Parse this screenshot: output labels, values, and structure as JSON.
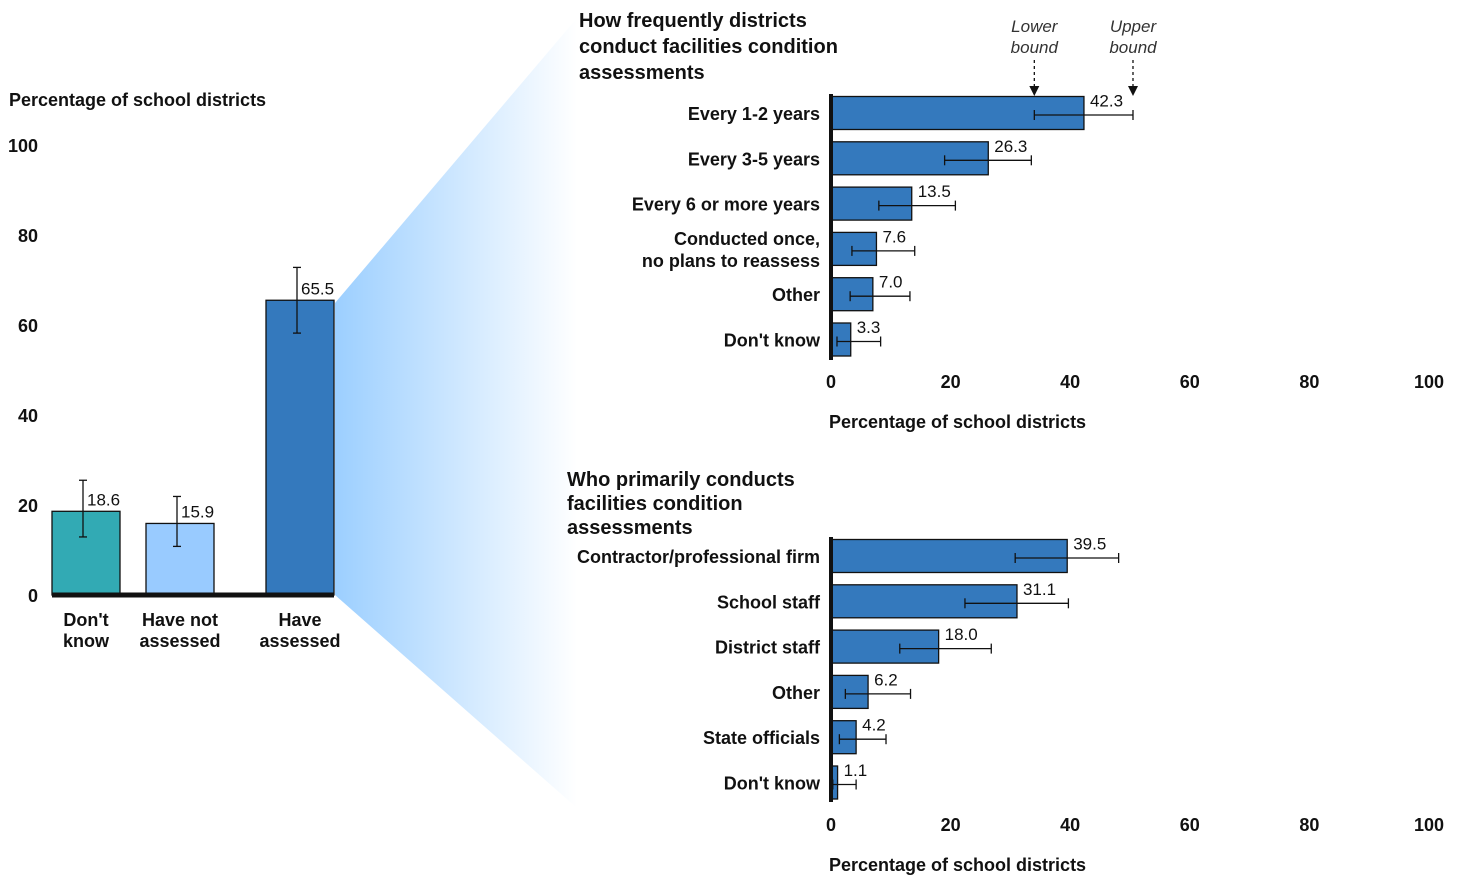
{
  "colors": {
    "teal": "#32aab4",
    "light_blue": "#99cbff",
    "blue": "#3479bd",
    "axis": "#111111",
    "zoom_gradient": "#9ccfff"
  },
  "chart_data": [
    {
      "id": "overview",
      "type": "bar",
      "orientation": "vertical",
      "ylabel": "Percentage of school districts",
      "ylim": [
        0,
        100
      ],
      "yticks": [
        0,
        20,
        40,
        60,
        80,
        100
      ],
      "categories": [
        {
          "label_lines": [
            "Don't",
            "know"
          ],
          "value": 18.6,
          "value_label": "18.6",
          "ci": [
            12.9,
            25.5
          ],
          "color": "#32aab4"
        },
        {
          "label_lines": [
            "Have not",
            "assessed"
          ],
          "value": 15.9,
          "value_label": "15.9",
          "ci": [
            10.8,
            21.9
          ],
          "color": "#99cbff"
        },
        {
          "label_lines": [
            "Have",
            "assessed"
          ],
          "value": 65.5,
          "value_label": "65.5",
          "ci": [
            58.2,
            72.8
          ],
          "color": "#3479bd"
        }
      ],
      "grid": false
    },
    {
      "id": "frequency",
      "type": "bar",
      "orientation": "horizontal",
      "title_lines": [
        "How frequently districts",
        "conduct facilities condition",
        "assessments"
      ],
      "xlabel": "Percentage of school districts",
      "xlim": [
        0,
        100
      ],
      "xticks": [
        0,
        20,
        40,
        60,
        80,
        100
      ],
      "bound_labels": {
        "lower": [
          "Lower",
          "bound"
        ],
        "upper": [
          "Upper",
          "bound"
        ],
        "lower_at": 34,
        "upper_at": 50.5
      },
      "categories": [
        {
          "label_lines": [
            "Every 1-2 years"
          ],
          "value": 42.3,
          "value_label": "42.3",
          "ci": [
            34.0,
            50.5
          ]
        },
        {
          "label_lines": [
            "Every 3-5 years"
          ],
          "value": 26.3,
          "value_label": "26.3",
          "ci": [
            19.0,
            33.5
          ]
        },
        {
          "label_lines": [
            "Every 6 or more years"
          ],
          "value": 13.5,
          "value_label": "13.5",
          "ci": [
            8.0,
            20.8
          ]
        },
        {
          "label_lines": [
            "Conducted once,",
            "no plans to reassess"
          ],
          "value": 7.6,
          "value_label": "7.6",
          "ci": [
            3.5,
            14.0
          ]
        },
        {
          "label_lines": [
            "Other"
          ],
          "value": 7.0,
          "value_label": "7.0",
          "ci": [
            3.2,
            13.2
          ]
        },
        {
          "label_lines": [
            "Don't know"
          ],
          "value": 3.3,
          "value_label": "3.3",
          "ci": [
            1.0,
            8.3
          ]
        }
      ],
      "color": "#3479bd",
      "grid": false
    },
    {
      "id": "who",
      "type": "bar",
      "orientation": "horizontal",
      "title_lines": [
        "Who primarily conducts",
        "facilities condition",
        "assessments"
      ],
      "xlabel": "Percentage of school districts",
      "xlim": [
        0,
        100
      ],
      "xticks": [
        0,
        20,
        40,
        60,
        80,
        100
      ],
      "categories": [
        {
          "label_lines": [
            "Contractor/professional firm"
          ],
          "value": 39.5,
          "value_label": "39.5",
          "ci": [
            30.8,
            48.1
          ]
        },
        {
          "label_lines": [
            "School staff"
          ],
          "value": 31.1,
          "value_label": "31.1",
          "ci": [
            22.4,
            39.7
          ]
        },
        {
          "label_lines": [
            "District staff"
          ],
          "value": 18.0,
          "value_label": "18.0",
          "ci": [
            11.5,
            26.8
          ]
        },
        {
          "label_lines": [
            "Other"
          ],
          "value": 6.2,
          "value_label": "6.2",
          "ci": [
            2.4,
            13.3
          ]
        },
        {
          "label_lines": [
            "State officials"
          ],
          "value": 4.2,
          "value_label": "4.2",
          "ci": [
            1.4,
            9.2
          ]
        },
        {
          "label_lines": [
            "Don't know"
          ],
          "value": 1.1,
          "value_label": "1.1",
          "ci": [
            0.3,
            4.2
          ]
        }
      ],
      "color": "#3479bd",
      "grid": false
    }
  ]
}
